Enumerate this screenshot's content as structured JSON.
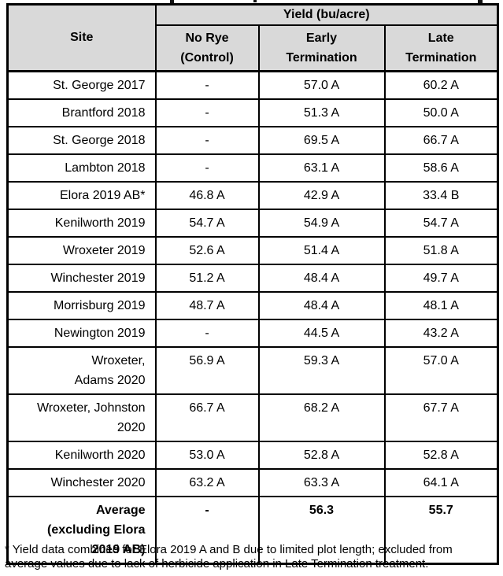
{
  "table": {
    "site_header": "Site",
    "yield_group_header": "Yield (bu/acre)",
    "column_headers": [
      [
        "No Rye",
        "(Control)"
      ],
      [
        "Early",
        "Termination"
      ],
      [
        "Late",
        "Termination"
      ]
    ],
    "rows": [
      {
        "site": "St. George 2017",
        "no_rye": "-",
        "early": "57.0 A",
        "late": "60.2 A"
      },
      {
        "site": "Brantford 2018",
        "no_rye": "-",
        "early": "51.3 A",
        "late": "50.0 A"
      },
      {
        "site": "St. George 2018",
        "no_rye": "-",
        "early": "69.5 A",
        "late": "66.7 A"
      },
      {
        "site": "Lambton 2018",
        "no_rye": "-",
        "early": "63.1 A",
        "late": "58.6 A"
      },
      {
        "site": "Elora 2019 AB*",
        "no_rye": "46.8 A",
        "early": "42.9 A",
        "late": "33.4 B"
      },
      {
        "site": "Kenilworth 2019",
        "no_rye": "54.7 A",
        "early": "54.9 A",
        "late": "54.7 A"
      },
      {
        "site": "Wroxeter 2019",
        "no_rye": "52.6 A",
        "early": "51.4 A",
        "late": "51.8 A"
      },
      {
        "site": "Winchester 2019",
        "no_rye": "51.2 A",
        "early": "48.4 A",
        "late": "49.7 A"
      },
      {
        "site": "Morrisburg 2019",
        "no_rye": "48.7 A",
        "early": "48.4 A",
        "late": "48.1 A"
      },
      {
        "site": "Newington 2019",
        "no_rye": "-",
        "early": "44.5 A",
        "late": "43.2 A"
      },
      {
        "site": [
          "Wroxeter,",
          "Adams 2020"
        ],
        "no_rye": "56.9 A",
        "early": "59.3 A",
        "late": "57.0 A"
      },
      {
        "site": [
          "Wroxeter, Johnston",
          "2020"
        ],
        "no_rye": "66.7 A",
        "early": "68.2 A",
        "late": "67.7 A"
      },
      {
        "site": "Kenilworth 2020",
        "no_rye": "53.0 A",
        "early": "52.8 A",
        "late": "52.8 A"
      },
      {
        "site": "Winchester 2020",
        "no_rye": "63.2 A",
        "early": "63.3 A",
        "late": "64.1 A"
      }
    ],
    "summary_row": {
      "site": [
        "Average",
        "(excluding Elora",
        "2019 AB)"
      ],
      "no_rye": "-",
      "early": "56.3",
      "late": "55.7"
    }
  },
  "footnote": [
    "* Yield data combined for Elora 2019 A and B due to limited plot length; excluded from",
    "average values due to lack of herbicide application in Late Termination treatment."
  ],
  "colors": {
    "header_bg": "#d9d9d9",
    "border": "#000000",
    "text": "#000000"
  }
}
